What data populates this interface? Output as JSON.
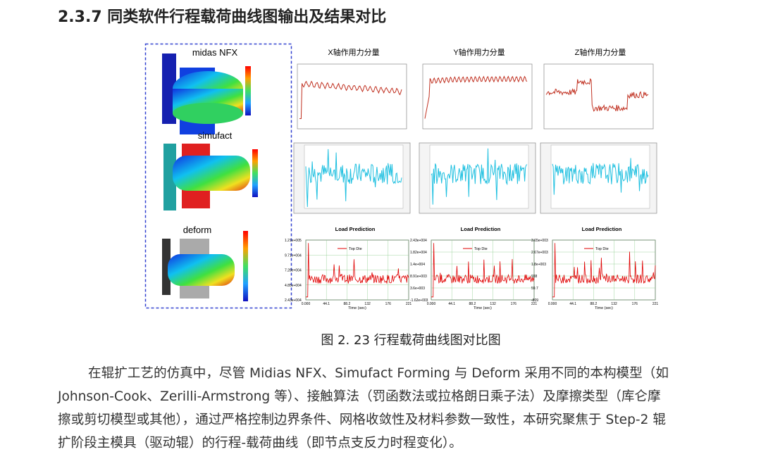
{
  "header": {
    "title": "2.3.7 同类软件行程载荷曲线图输出及结果对比"
  },
  "figure": {
    "software": [
      "midas NFX",
      "simufact",
      "deform"
    ],
    "panel_titles": [
      "X轴作用力分量",
      "Y轴作用力分量",
      "Z轴作用力分量"
    ],
    "load_panels": [
      {
        "title": "Load Prediction",
        "legend": "Top Die",
        "xticks": [
          "0.000",
          "44.1",
          "88.2",
          "132",
          "176",
          "221"
        ],
        "xlabel": "Time (sec)",
        "yticks": [
          "1.21e+005",
          "9.71e+004",
          "7.28e+004",
          "4.85e+004",
          "2.43e+004"
        ]
      },
      {
        "title": "Load Prediction",
        "legend": "Top Die",
        "xticks": [
          "0.000",
          "44.1",
          "88.2",
          "132",
          "176",
          "221"
        ],
        "xlabel": "Time (sec)",
        "yticks": [
          "2.43e+004",
          "1.82e+004",
          "1.4e+004",
          "8.91e+003",
          "3.6e+003",
          "-1.62e+003"
        ]
      },
      {
        "title": "Load Prediction",
        "legend": "Top Die",
        "xticks": [
          "0.000",
          "44.1",
          "88.2",
          "132",
          "176",
          "221"
        ],
        "xlabel": "Time (sec)",
        "yticks": [
          "3.65e+003",
          "2.67e+003",
          "1.8e+003",
          "938",
          "59.7",
          "-809"
        ]
      }
    ],
    "caption": "图 2. 23 行程载荷曲线图对比图"
  },
  "paragraph_lines": [
    "在辊扩工艺的仿真中，尽管 Midias NFX、Simufact Forming 与 Deform 采用不同的本构模型（如",
    "Johnson-Cook、Zerilli-Armstrong 等）、接触算法（罚函数法或拉格朗日乘子法）及摩擦类型（库仑摩",
    "擦或剪切模型或其他），通过严格控制边界条件、网格收敛性及材料参数一致性，本研究聚焦于 Step-2 辊",
    "扩阶段主模具（驱动辊）的行程-载荷曲线（即节点支反力时程变化）。"
  ]
}
